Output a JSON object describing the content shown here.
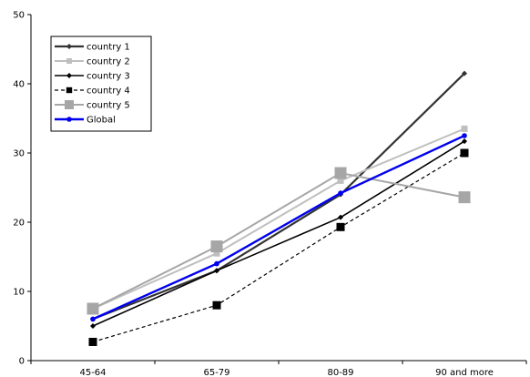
{
  "chart_data": {
    "type": "line",
    "categories": [
      "45-64",
      "65-79",
      "80-89",
      "90 and more"
    ],
    "ylim": [
      0,
      50
    ],
    "yticks": [
      "0",
      "10",
      "20",
      "30",
      "40",
      "50"
    ],
    "grid": false,
    "legend_position": "top-left",
    "series": [
      {
        "name": "country 1",
        "values": [
          6.0,
          13.0,
          24.0,
          41.5
        ],
        "color": "#333333",
        "marker": "diamond",
        "dash": "solid"
      },
      {
        "name": "country 2",
        "values": [
          7.5,
          15.5,
          26.0,
          33.5
        ],
        "color": "#bfbfbf",
        "marker": "square",
        "dash": "solid"
      },
      {
        "name": "country 3",
        "values": [
          5.0,
          13.0,
          20.7,
          31.7
        ],
        "color": "#000000",
        "marker": "diamond",
        "dash": "solid"
      },
      {
        "name": "country 4",
        "values": [
          2.7,
          8.0,
          19.3,
          30.0
        ],
        "color": "#000000",
        "marker": "square",
        "dash": "dashed"
      },
      {
        "name": "country 5",
        "values": [
          7.5,
          16.5,
          27.1,
          23.6
        ],
        "color": "#a6a6a6",
        "marker": "bigsquare",
        "dash": "solid"
      },
      {
        "name": "Global",
        "values": [
          6.0,
          14.0,
          24.2,
          32.5
        ],
        "color": "#0000ee",
        "marker": "circle",
        "dash": "solid"
      }
    ]
  }
}
